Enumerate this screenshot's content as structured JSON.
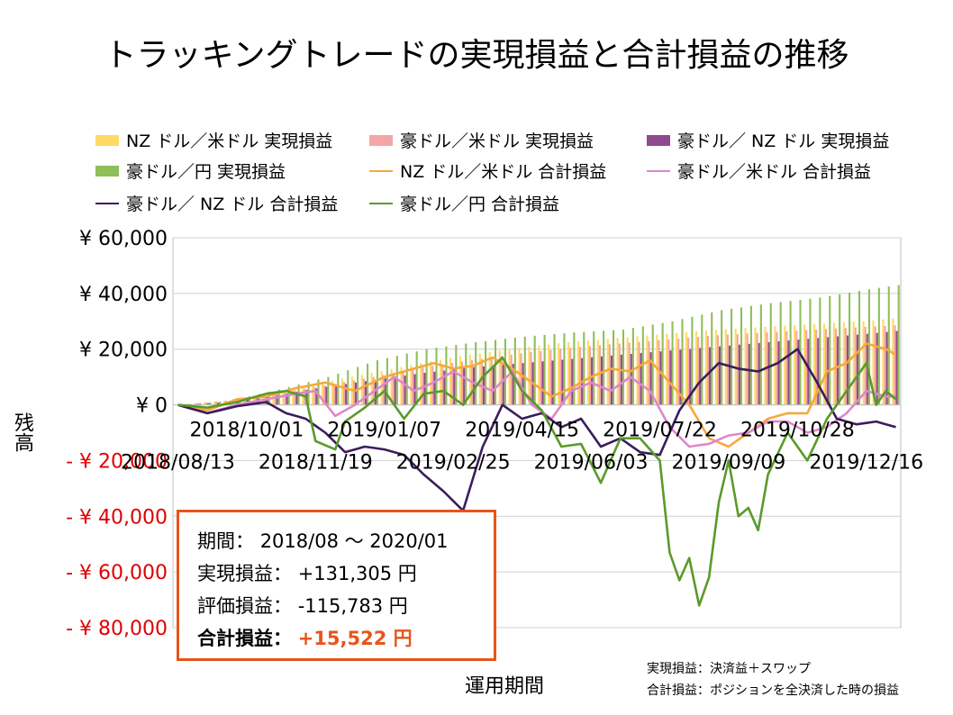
{
  "title": "トラッキングトレードの実現損益と合計損益の推移",
  "chart_data": {
    "type": "bar+line",
    "title": "トラッキングトレードの実現損益と合計損益の推移",
    "ylabel": "残高",
    "xlabel": "運用期間",
    "ylim": [
      -80000,
      60000
    ],
    "y_ticks": [
      {
        "value": 60000,
        "label": "¥ 60,000",
        "color": "#000000"
      },
      {
        "value": 40000,
        "label": "¥ 40,000",
        "color": "#000000"
      },
      {
        "value": 20000,
        "label": "¥ 20,000",
        "color": "#000000"
      },
      {
        "value": 0,
        "label": "¥ 0",
        "color": "#000000"
      },
      {
        "value": -20000,
        "label": "- ¥ 20,000",
        "color": "#e00000"
      },
      {
        "value": -40000,
        "label": "- ¥ 40,000",
        "color": "#e00000"
      },
      {
        "value": -60000,
        "label": "- ¥ 60,000",
        "color": "#e00000"
      },
      {
        "value": -80000,
        "label": "- ¥ 80,000",
        "color": "#e00000"
      }
    ],
    "x_ticks_upper": [
      {
        "index": 7,
        "label": "2018/10/01"
      },
      {
        "index": 21,
        "label": "2019/01/07"
      },
      {
        "index": 35,
        "label": "2019/04/15"
      },
      {
        "index": 49,
        "label": "2019/07/22"
      },
      {
        "index": 63,
        "label": "2019/10/28"
      }
    ],
    "x_ticks_lower": [
      {
        "index": 0,
        "label": "2018/08/13"
      },
      {
        "index": 14,
        "label": "2018/11/19"
      },
      {
        "index": 28,
        "label": "2019/02/25"
      },
      {
        "index": 42,
        "label": "2019/06/03"
      },
      {
        "index": 56,
        "label": "2019/09/09"
      },
      {
        "index": 70,
        "label": "2019/12/16"
      }
    ],
    "n_weeks": 74,
    "series": [
      {
        "name": "NZ ドル／米ドル 実現損益",
        "kind": "bar",
        "color": "#ffd966",
        "anchors": [
          [
            0,
            0
          ],
          [
            5,
            1500
          ],
          [
            10,
            4500
          ],
          [
            15,
            8000
          ],
          [
            20,
            11500
          ],
          [
            25,
            15000
          ],
          [
            30,
            18000
          ],
          [
            35,
            20500
          ],
          [
            40,
            22500
          ],
          [
            45,
            24000
          ],
          [
            50,
            25500
          ],
          [
            55,
            27000
          ],
          [
            60,
            28000
          ],
          [
            65,
            29000
          ],
          [
            70,
            30000
          ],
          [
            73,
            31000
          ]
        ]
      },
      {
        "name": "豪ドル／米ドル 実現損益",
        "kind": "bar",
        "color": "#f4a6a6",
        "anchors": [
          [
            0,
            0
          ],
          [
            5,
            1500
          ],
          [
            10,
            4000
          ],
          [
            15,
            7000
          ],
          [
            20,
            10000
          ],
          [
            25,
            13500
          ],
          [
            30,
            16000
          ],
          [
            35,
            18500
          ],
          [
            40,
            20500
          ],
          [
            45,
            22000
          ],
          [
            50,
            23500
          ],
          [
            55,
            25000
          ],
          [
            60,
            26000
          ],
          [
            65,
            27000
          ],
          [
            70,
            28000
          ],
          [
            73,
            28500
          ]
        ]
      },
      {
        "name": "豪ドル／ NZ ドル 実現損益",
        "kind": "bar",
        "color": "#8e4a8e",
        "anchors": [
          [
            0,
            0
          ],
          [
            5,
            1000
          ],
          [
            10,
            3500
          ],
          [
            15,
            6500
          ],
          [
            20,
            9000
          ],
          [
            25,
            11500
          ],
          [
            30,
            13500
          ],
          [
            35,
            15000
          ],
          [
            40,
            16500
          ],
          [
            45,
            18000
          ],
          [
            50,
            19500
          ],
          [
            55,
            21000
          ],
          [
            60,
            22500
          ],
          [
            65,
            24000
          ],
          [
            70,
            25500
          ],
          [
            73,
            26500
          ]
        ]
      },
      {
        "name": "豪ドル／円 実現損益",
        "kind": "bar",
        "color": "#8fbf5a",
        "anchors": [
          [
            0,
            0
          ],
          [
            5,
            1500
          ],
          [
            10,
            5500
          ],
          [
            15,
            10000
          ],
          [
            20,
            16000
          ],
          [
            25,
            20000
          ],
          [
            30,
            22500
          ],
          [
            35,
            24500
          ],
          [
            40,
            26000
          ],
          [
            45,
            27000
          ],
          [
            50,
            30000
          ],
          [
            55,
            34000
          ],
          [
            60,
            36500
          ],
          [
            65,
            38500
          ],
          [
            70,
            41500
          ],
          [
            73,
            43000
          ]
        ]
      },
      {
        "name": "NZ ドル／米ドル 合計損益",
        "kind": "line",
        "color": "#f7a83b",
        "anchors": [
          [
            0,
            0
          ],
          [
            3,
            -2000
          ],
          [
            6,
            2000
          ],
          [
            9,
            3000
          ],
          [
            12,
            6000
          ],
          [
            15,
            8000
          ],
          [
            18,
            5000
          ],
          [
            21,
            10000
          ],
          [
            24,
            13000
          ],
          [
            26,
            15000
          ],
          [
            28,
            13000
          ],
          [
            30,
            14000
          ],
          [
            32,
            17000
          ],
          [
            34,
            13000
          ],
          [
            36,
            8000
          ],
          [
            38,
            3000
          ],
          [
            40,
            6000
          ],
          [
            42,
            10000
          ],
          [
            44,
            13000
          ],
          [
            46,
            12000
          ],
          [
            48,
            16000
          ],
          [
            50,
            8000
          ],
          [
            52,
            0
          ],
          [
            54,
            -12000
          ],
          [
            56,
            -15000
          ],
          [
            58,
            -10000
          ],
          [
            60,
            -5000
          ],
          [
            62,
            -3000
          ],
          [
            64,
            -3000
          ],
          [
            66,
            12000
          ],
          [
            68,
            15000
          ],
          [
            70,
            22000
          ],
          [
            72,
            20000
          ],
          [
            73,
            18000
          ]
        ]
      },
      {
        "name": "豪ドル／米ドル 合計損益",
        "kind": "line",
        "color": "#dd88cc",
        "anchors": [
          [
            0,
            0
          ],
          [
            3,
            -3000
          ],
          [
            6,
            0
          ],
          [
            9,
            2000
          ],
          [
            12,
            4000
          ],
          [
            14,
            5000
          ],
          [
            16,
            -4000
          ],
          [
            18,
            0
          ],
          [
            20,
            5000
          ],
          [
            22,
            10000
          ],
          [
            24,
            5000
          ],
          [
            26,
            8000
          ],
          [
            28,
            12000
          ],
          [
            30,
            8000
          ],
          [
            32,
            5000
          ],
          [
            34,
            12000
          ],
          [
            36,
            0
          ],
          [
            38,
            -5000
          ],
          [
            40,
            5000
          ],
          [
            42,
            8000
          ],
          [
            44,
            5000
          ],
          [
            46,
            10000
          ],
          [
            48,
            5000
          ],
          [
            50,
            -8000
          ],
          [
            52,
            -15000
          ],
          [
            54,
            -14000
          ],
          [
            56,
            -11000
          ],
          [
            58,
            -10000
          ],
          [
            60,
            -6000
          ],
          [
            62,
            -6000
          ],
          [
            64,
            -10000
          ],
          [
            66,
            -8000
          ],
          [
            68,
            -3000
          ],
          [
            70,
            5000
          ],
          [
            72,
            3000
          ],
          [
            73,
            3000
          ]
        ]
      },
      {
        "name": "豪ドル／ NZ ドル 合計損益",
        "kind": "line",
        "color": "#3b1d5c",
        "anchors": [
          [
            0,
            0
          ],
          [
            3,
            -3000
          ],
          [
            6,
            -500
          ],
          [
            9,
            1000
          ],
          [
            11,
            -3000
          ],
          [
            13,
            -5000
          ],
          [
            15,
            -10000
          ],
          [
            17,
            -17000
          ],
          [
            19,
            -15000
          ],
          [
            21,
            -16000
          ],
          [
            23,
            -18000
          ],
          [
            25,
            -25000
          ],
          [
            27,
            -31000
          ],
          [
            29,
            -38000
          ],
          [
            31,
            -15000
          ],
          [
            33,
            0
          ],
          [
            35,
            -5000
          ],
          [
            37,
            -3000
          ],
          [
            39,
            -8000
          ],
          [
            41,
            -5000
          ],
          [
            43,
            -15000
          ],
          [
            45,
            -12000
          ],
          [
            47,
            -17000
          ],
          [
            49,
            -18000
          ],
          [
            51,
            -2000
          ],
          [
            53,
            8000
          ],
          [
            55,
            15000
          ],
          [
            57,
            13000
          ],
          [
            59,
            12000
          ],
          [
            61,
            15000
          ],
          [
            63,
            20000
          ],
          [
            65,
            8000
          ],
          [
            67,
            -5000
          ],
          [
            69,
            -7000
          ],
          [
            71,
            -6000
          ],
          [
            73,
            -8000
          ]
        ]
      },
      {
        "name": "豪ドル／円 合計損益",
        "kind": "line",
        "color": "#5a9a2b",
        "anchors": [
          [
            0,
            0
          ],
          [
            3,
            -1000
          ],
          [
            6,
            1000
          ],
          [
            9,
            4000
          ],
          [
            11,
            5000
          ],
          [
            13,
            3000
          ],
          [
            14,
            -13000
          ],
          [
            16,
            -16000
          ],
          [
            17,
            -6000
          ],
          [
            19,
            -1000
          ],
          [
            21,
            5000
          ],
          [
            23,
            -5000
          ],
          [
            25,
            4000
          ],
          [
            27,
            5000
          ],
          [
            29,
            0
          ],
          [
            31,
            10000
          ],
          [
            33,
            17000
          ],
          [
            35,
            5000
          ],
          [
            37,
            -2000
          ],
          [
            39,
            -15000
          ],
          [
            41,
            -14000
          ],
          [
            43,
            -28000
          ],
          [
            45,
            -12000
          ],
          [
            47,
            -12000
          ],
          [
            49,
            -20000
          ],
          [
            50,
            -53000
          ],
          [
            51,
            -63000
          ],
          [
            52,
            -55000
          ],
          [
            53,
            -72000
          ],
          [
            54,
            -62000
          ],
          [
            55,
            -35000
          ],
          [
            56,
            -20000
          ],
          [
            57,
            -40000
          ],
          [
            58,
            -37000
          ],
          [
            59,
            -45000
          ],
          [
            60,
            -25000
          ],
          [
            62,
            -10000
          ],
          [
            64,
            -20000
          ],
          [
            66,
            -5000
          ],
          [
            68,
            5000
          ],
          [
            70,
            15000
          ],
          [
            71,
            0
          ],
          [
            72,
            5000
          ],
          [
            73,
            2000
          ]
        ]
      }
    ]
  },
  "legend": {
    "items": [
      {
        "label": "NZ ドル／米ドル 実現損益",
        "kind": "box",
        "color": "#ffd966"
      },
      {
        "label": "豪ドル／米ドル 実現損益",
        "kind": "box",
        "color": "#f4a6a6"
      },
      {
        "label": "豪ドル／ NZ ドル 実現損益",
        "kind": "box",
        "color": "#8e4a8e"
      },
      {
        "label": "豪ドル／円 実現損益",
        "kind": "box",
        "color": "#8fbf5a"
      },
      {
        "label": "NZ ドル／米ドル 合計損益",
        "kind": "line",
        "color": "#f7a83b"
      },
      {
        "label": "豪ドル／米ドル 合計損益",
        "kind": "line",
        "color": "#dd88cc"
      },
      {
        "label": "豪ドル／ NZ ドル 合計損益",
        "kind": "line",
        "color": "#3b1d5c"
      },
      {
        "label": "豪ドル／円 合計損益",
        "kind": "line",
        "color": "#5a9a2b"
      }
    ]
  },
  "summary": {
    "period_label": "期間：",
    "period_value": "2018/08 ～ 2020/01",
    "realized_label": "実現損益：",
    "realized_value": "+131,305 円",
    "unrealized_label": "評価損益：",
    "unrealized_value": "-115,783 円",
    "total_label": "合計損益：",
    "total_value": "+15,522 円",
    "border_color": "#e8541b"
  },
  "notes": {
    "realized_def": "実現損益：決済益＋スワップ",
    "total_def": "合計損益：ポジションを全決済した時の損益"
  }
}
